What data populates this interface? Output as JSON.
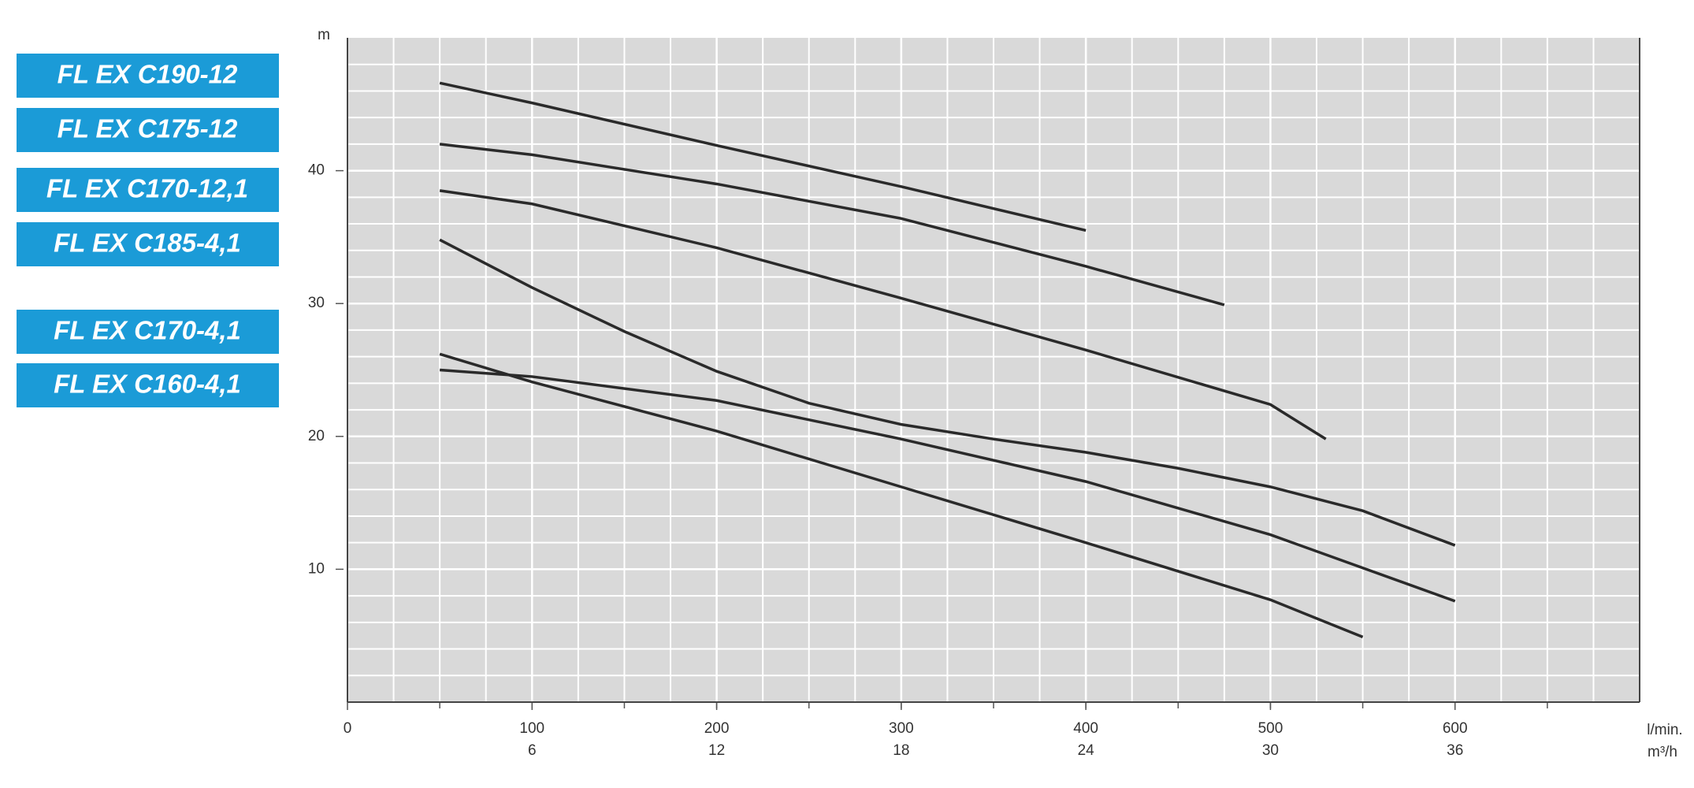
{
  "chart_data": {
    "type": "line",
    "y_label": "m",
    "x_label": "l/min.",
    "x2_label": "m³/h",
    "xlim": [
      0,
      700
    ],
    "xticks": [
      0,
      100,
      200,
      300,
      400,
      500,
      600
    ],
    "x2lim": [
      0,
      42
    ],
    "x2ticks": [
      6,
      12,
      18,
      24,
      30,
      36
    ],
    "ylim": [
      0,
      50
    ],
    "yticks": [
      10,
      20,
      30,
      40
    ],
    "grid": true,
    "legend_color": "#1b9bd7",
    "series": [
      {
        "name": "FL EX C190-12",
        "color": "#2a2a2a",
        "x": [
          50,
          100,
          200,
          300,
          400
        ],
        "values": [
          46.6,
          45.1,
          41.9,
          38.8,
          35.5
        ]
      },
      {
        "name": "FL EX C175-12",
        "color": "#2a2a2a",
        "x": [
          50,
          100,
          200,
          300,
          400,
          475
        ],
        "values": [
          42.0,
          41.2,
          39.0,
          36.4,
          32.8,
          29.9
        ]
      },
      {
        "name": "FL EX C170-12,1",
        "color": "#2a2a2a",
        "x": [
          50,
          100,
          200,
          300,
          400,
          500,
          530
        ],
        "values": [
          38.5,
          37.5,
          34.2,
          30.4,
          26.5,
          22.4,
          19.8
        ]
      },
      {
        "name": "FL EX C185-4,1",
        "color": "#2a2a2a",
        "x": [
          50,
          100,
          150,
          200,
          250,
          300,
          350,
          400,
          450,
          500,
          550,
          600
        ],
        "values": [
          34.8,
          31.2,
          27.9,
          24.9,
          22.5,
          20.9,
          19.8,
          18.8,
          17.6,
          16.2,
          14.4,
          11.8
        ]
      },
      {
        "name": "FL EX C170-4,1",
        "color": "#2a2a2a",
        "x": [
          50,
          100,
          200,
          300,
          400,
          500,
          550
        ],
        "values": [
          26.2,
          24.1,
          20.4,
          16.2,
          12.0,
          7.7,
          4.9
        ]
      },
      {
        "name": "FL EX C160-4,1",
        "color": "#2a2a2a",
        "x": [
          50,
          100,
          200,
          300,
          400,
          500,
          600
        ],
        "values": [
          25.0,
          24.5,
          22.7,
          19.8,
          16.6,
          12.6,
          7.6
        ]
      }
    ]
  }
}
